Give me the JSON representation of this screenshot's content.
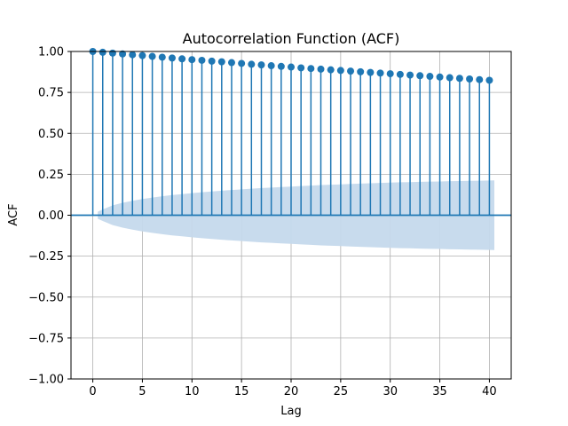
{
  "chart_data": {
    "type": "stem",
    "title": "Autocorrelation Function (ACF)",
    "xlabel": "Lag",
    "ylabel": "ACF",
    "xlim": [
      -2.2,
      42.2
    ],
    "ylim": [
      -1.0,
      1.0
    ],
    "xticks": [
      0,
      5,
      10,
      15,
      20,
      25,
      30,
      35,
      40
    ],
    "yticks": [
      -1.0,
      -0.75,
      -0.5,
      -0.25,
      0.0,
      0.25,
      0.5,
      0.75,
      1.0
    ],
    "ytick_labels": [
      "−1.00",
      "−0.75",
      "−0.50",
      "−0.25",
      "0.00",
      "0.25",
      "0.50",
      "0.75",
      "1.00"
    ],
    "grid": true,
    "stem_color": "#1f77b4",
    "band_color": "#c5d9ec",
    "lags": [
      0,
      1,
      2,
      3,
      4,
      5,
      6,
      7,
      8,
      9,
      10,
      11,
      12,
      13,
      14,
      15,
      16,
      17,
      18,
      19,
      20,
      21,
      22,
      23,
      24,
      25,
      26,
      27,
      28,
      29,
      30,
      31,
      32,
      33,
      34,
      35,
      36,
      37,
      38,
      39,
      40
    ],
    "acf": [
      1.0,
      0.995,
      0.99,
      0.985,
      0.98,
      0.975,
      0.97,
      0.965,
      0.96,
      0.955,
      0.95,
      0.946,
      0.941,
      0.937,
      0.932,
      0.927,
      0.922,
      0.918,
      0.913,
      0.909,
      0.905,
      0.9,
      0.896,
      0.892,
      0.888,
      0.884,
      0.88,
      0.876,
      0.872,
      0.868,
      0.864,
      0.86,
      0.856,
      0.852,
      0.848,
      0.844,
      0.84,
      0.836,
      0.832,
      0.828,
      0.824
    ],
    "conf_band": {
      "x": [
        0.5,
        1,
        2,
        3,
        4,
        5,
        6,
        7,
        8,
        9,
        10,
        11,
        12,
        13,
        14,
        15,
        16,
        17,
        18,
        19,
        20,
        21,
        22,
        23,
        24,
        25,
        26,
        27,
        28,
        29,
        30,
        31,
        32,
        33,
        34,
        35,
        36,
        37,
        38,
        39,
        40,
        40.5
      ],
      "upper": [
        0.022,
        0.035,
        0.06,
        0.076,
        0.088,
        0.099,
        0.108,
        0.116,
        0.123,
        0.129,
        0.135,
        0.14,
        0.145,
        0.15,
        0.154,
        0.158,
        0.162,
        0.166,
        0.169,
        0.172,
        0.175,
        0.178,
        0.181,
        0.184,
        0.186,
        0.188,
        0.191,
        0.193,
        0.195,
        0.197,
        0.199,
        0.201,
        0.202,
        0.204,
        0.205,
        0.206,
        0.208,
        0.209,
        0.21,
        0.211,
        0.212,
        0.213
      ]
    }
  }
}
